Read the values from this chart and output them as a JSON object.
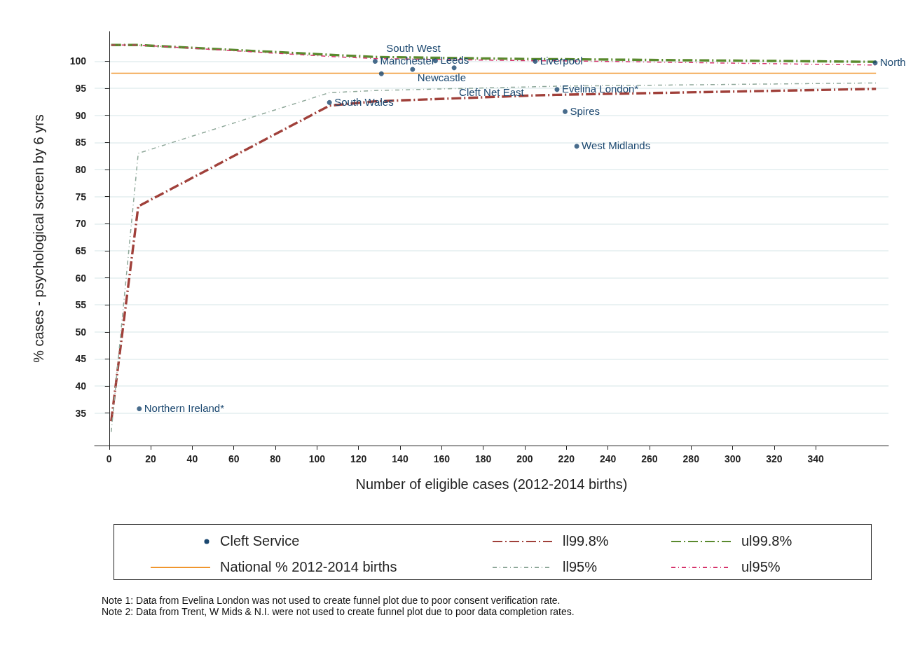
{
  "chart_data": {
    "type": "scatter",
    "xlabel": "Number of eligible cases (2012-2014 births)",
    "ylabel": "% cases - psychological screen by 6 yrs",
    "xlim": [
      -7,
      375
    ],
    "ylim": [
      29,
      105.5
    ],
    "xticks": [
      0,
      20,
      40,
      60,
      80,
      100,
      120,
      140,
      160,
      180,
      200,
      220,
      240,
      260,
      280,
      300,
      320,
      340
    ],
    "yticks": [
      35,
      40,
      45,
      50,
      55,
      60,
      65,
      70,
      75,
      80,
      85,
      90,
      95,
      100
    ],
    "grid": "y",
    "legend": "bottom",
    "series": [
      {
        "name": "Cleft Service",
        "marker": "circle",
        "color": "#1a476f",
        "x": [
          14.5,
          106,
          128,
          157,
          146,
          166,
          131,
          205,
          215.5,
          219.4,
          225,
          368.6
        ],
        "values": [
          35.8,
          92.4,
          100.0,
          100.1,
          98.5,
          98.8,
          97.7,
          100.0,
          94.8,
          90.7,
          84.3,
          99.7
        ]
      },
      {
        "name": "ll99.8%",
        "type": "line",
        "marker": "none",
        "line_style": "dashed",
        "color": "#a0403a",
        "x": [
          1,
          14,
          106,
          128,
          205,
          215,
          369
        ],
        "values": [
          33.5,
          73.2,
          91.8,
          92.6,
          93.7,
          93.8,
          94.9
        ]
      },
      {
        "name": "ul99.8%",
        "type": "line",
        "marker": "none",
        "line_style": "dashed",
        "color": "#5a8a2e",
        "x": [
          1,
          14,
          106,
          128,
          205,
          215,
          369
        ],
        "values": [
          103,
          103,
          101.2,
          100.8,
          100.4,
          100.4,
          99.9
        ]
      },
      {
        "name": "National %  2012-2014 births",
        "type": "line",
        "marker": "none",
        "line_style": "solid",
        "color": "#f0962e",
        "x": [
          1,
          369
        ],
        "values": [
          97.8,
          97.8
        ]
      },
      {
        "name": "ll95%",
        "type": "line",
        "marker": "none",
        "line_style": "dotted",
        "color": "#8fa89a",
        "x": [
          1,
          14,
          106,
          128,
          205,
          215,
          369
        ],
        "values": [
          31.5,
          83,
          94.2,
          94.6,
          95.3,
          95.4,
          96.0
        ]
      },
      {
        "name": "ul95%",
        "type": "line",
        "marker": "none",
        "line_style": "dotted",
        "color": "#d6336c",
        "x": [
          1,
          14,
          106,
          128,
          205,
          215,
          369
        ],
        "values": [
          103,
          103,
          100.9,
          100.5,
          100.1,
          100.1,
          99.3
        ]
      }
    ],
    "annotations": [
      {
        "text": "Northern Ireland*",
        "x": 14.5,
        "y": 35.8
      },
      {
        "text": "South Wales",
        "x": 106,
        "y": 92.4
      },
      {
        "text": "Manchester",
        "x": 128,
        "y": 100.0
      },
      {
        "text": "Leeds",
        "x": 157,
        "y": 100.1
      },
      {
        "text": "Newcastle",
        "x": 146,
        "y": 98.5
      },
      {
        "text": "Cleft Net East",
        "x": 166,
        "y": 98.8
      },
      {
        "text": "South West",
        "x": 131,
        "y": 97.7
      },
      {
        "text": "Liverpool",
        "x": 205,
        "y": 100.0
      },
      {
        "text": "Evelina London*",
        "x": 215.5,
        "y": 94.8
      },
      {
        "text": "Spires",
        "x": 219.4,
        "y": 90.7
      },
      {
        "text": "West Midlands",
        "x": 225,
        "y": 84.3
      },
      {
        "text": "North",
        "x": 368.6,
        "y": 99.7
      },
      "Note 1: Data from Evelina London was not used to create funnel plot due to poor consent verification rate.",
      "Note 2: Data from Trent, W Mids & N.I. were not used to create funnel plot due to poor data completion rates."
    ]
  }
}
